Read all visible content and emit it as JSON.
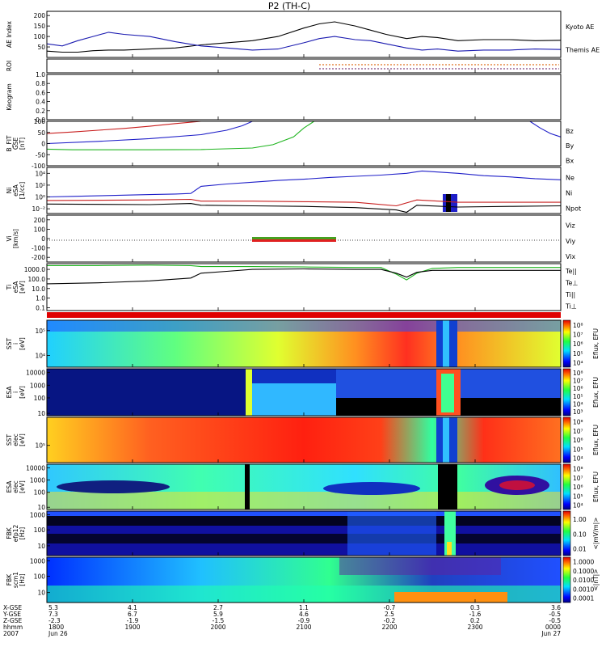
{
  "chart_data": {
    "type": "line",
    "title": "P2 (TH-C)",
    "panels": [
      {
        "id": "ae",
        "ylabel": [
          "AE Index"
        ],
        "yticks": [
          "50",
          "100",
          "150",
          "200"
        ],
        "legend": [
          {
            "name": "Kyoto AE",
            "color": "#1a1ab0"
          },
          {
            "name": "Themis AE",
            "color": "#000000"
          }
        ],
        "series": [
          {
            "name": "Themis AE",
            "color": "#000000",
            "x": [
              0,
              0.03,
              0.06,
              0.09,
              0.12,
              0.15,
              0.2,
              0.25,
              0.3,
              0.35,
              0.4,
              0.45,
              0.5,
              0.53,
              0.56,
              0.6,
              0.63,
              0.66,
              0.7,
              0.73,
              0.76,
              0.8,
              0.85,
              0.9,
              0.95,
              1.0
            ],
            "y": [
              30,
              25,
              25,
              32,
              35,
              35,
              40,
              45,
              60,
              70,
              80,
              100,
              140,
              160,
              170,
              150,
              130,
              110,
              90,
              100,
              95,
              80,
              85,
              85,
              80,
              82
            ]
          },
          {
            "name": "Kyoto AE",
            "color": "#1a1ab0",
            "x": [
              0,
              0.03,
              0.06,
              0.09,
              0.12,
              0.15,
              0.2,
              0.25,
              0.3,
              0.35,
              0.4,
              0.45,
              0.5,
              0.53,
              0.56,
              0.6,
              0.63,
              0.66,
              0.7,
              0.73,
              0.76,
              0.8,
              0.85,
              0.9,
              0.95,
              1.0
            ],
            "y": [
              65,
              55,
              80,
              100,
              120,
              110,
              100,
              75,
              55,
              45,
              35,
              40,
              70,
              90,
              100,
              85,
              80,
              65,
              45,
              35,
              40,
              30,
              35,
              35,
              40,
              38
            ]
          }
        ]
      },
      {
        "id": "roi",
        "ylabel": [
          "ROI"
        ],
        "yticks": []
      },
      {
        "id": "keogram",
        "ylabel": [
          "Keogram"
        ],
        "yticks": [
          "0.0",
          "0.2",
          "0.4",
          "0.6",
          "0.8",
          "1.0"
        ]
      },
      {
        "id": "bfit",
        "ylabel": [
          "B_FIT",
          "GSE",
          "[nT]"
        ],
        "yticks": [
          "-100",
          "-50",
          "0",
          "50",
          "100"
        ],
        "legend": [
          {
            "name": "Bz",
            "color": "#c81e1e"
          },
          {
            "name": "By",
            "color": "#1eb41e"
          },
          {
            "name": "Bx",
            "color": "#1e1ec8"
          }
        ],
        "series": [
          {
            "name": "Bz",
            "color": "#c81e1e",
            "x": [
              0,
              0.05,
              0.1,
              0.15,
              0.2,
              0.25,
              0.3
            ],
            "y": [
              45,
              52,
              60,
              68,
              78,
              90,
              100
            ]
          },
          {
            "name": "By",
            "color": "#1eb41e",
            "x": [
              0,
              0.05,
              0.1,
              0.2,
              0.3,
              0.4,
              0.44,
              0.48,
              0.5,
              0.52
            ],
            "y": [
              -25,
              -28,
              -28,
              -28,
              -27,
              -20,
              -5,
              30,
              70,
              100
            ]
          },
          {
            "name": "Bx",
            "color": "#1e1ec8",
            "x": [
              0,
              0.1,
              0.2,
              0.3,
              0.35,
              0.38,
              0.4
            ],
            "y": [
              0,
              10,
              22,
              40,
              60,
              80,
              100
            ]
          },
          {
            "name": "Bx",
            "color": "#1e1ec8",
            "x": [
              0.94,
              0.96,
              0.98,
              1.0
            ],
            "y": [
              100,
              70,
              45,
              30
            ]
          }
        ]
      },
      {
        "id": "ni",
        "ylabel": [
          "Ni",
          "eSA",
          "[1/cc]"
        ],
        "yticks": [
          "10⁻²",
          "10⁰",
          "10²",
          "10⁴"
        ],
        "legend": [
          {
            "name": "Ne",
            "color": "#c81e1e"
          },
          {
            "name": "Ni",
            "color": "#000000"
          },
          {
            "name": "Npot",
            "color": "#1e1ec8"
          }
        ],
        "series": [
          {
            "name": "Npot",
            "color": "#1e1ec8",
            "x": [
              0,
              0.05,
              0.1,
              0.15,
              0.2,
              0.25,
              0.28,
              0.3,
              0.35,
              0.4,
              0.45,
              0.5,
              0.55,
              0.6,
              0.65,
              0.7,
              0.73,
              0.8,
              0.85,
              0.9,
              0.95,
              1.0
            ],
            "y": [
              0,
              0.1,
              0.2,
              0.3,
              0.4,
              0.5,
              0.6,
              1.8,
              2.2,
              2.5,
              2.8,
              3.0,
              3.3,
              3.5,
              3.7,
              4.0,
              4.4,
              4.0,
              3.6,
              3.4,
              3.1,
              2.9
            ]
          },
          {
            "name": "Ne",
            "color": "#c81e1e",
            "x": [
              0,
              0.2,
              0.28,
              0.3,
              0.4,
              0.5,
              0.6,
              0.68,
              0.72,
              0.8,
              0.9,
              1.0
            ],
            "y": [
              -0.6,
              -0.5,
              -0.4,
              -0.7,
              -0.7,
              -0.8,
              -0.9,
              -1.5,
              -0.5,
              -0.9,
              -0.9,
              -0.9
            ]
          },
          {
            "name": "Ni",
            "color": "#000000",
            "x": [
              0,
              0.2,
              0.28,
              0.3,
              0.4,
              0.5,
              0.6,
              0.68,
              0.7,
              0.72,
              0.8,
              0.9,
              1.0
            ],
            "y": [
              -1.2,
              -1.3,
              -1.1,
              -1.4,
              -1.5,
              -1.6,
              -1.8,
              -2.2,
              -2.6,
              -1.4,
              -1.7,
              -1.6,
              -1.5
            ]
          }
        ]
      },
      {
        "id": "vi",
        "ylabel": [
          "Vi",
          "[km/s]"
        ],
        "yticks": [
          "-200",
          "-100",
          "0",
          "100",
          "200"
        ],
        "legend": [
          {
            "name": "Viz",
            "color": "#c81e1e"
          },
          {
            "name": "Viy",
            "color": "#1eb41e"
          },
          {
            "name": "Vix",
            "color": "#1e1ec8"
          }
        ]
      },
      {
        "id": "ti",
        "ylabel": [
          "Ti",
          "eSA",
          "[eV]"
        ],
        "yticks": [
          "0.1",
          "1.0",
          "10.0",
          "100.0",
          "1000.0"
        ],
        "legend": [
          {
            "name": "Te||",
            "color": "#000000"
          },
          {
            "name": "Te⊥",
            "color": "#c81e1e"
          },
          {
            "name": "Ti||",
            "color": "#1eb41e"
          },
          {
            "name": "Ti⊥",
            "color": "#1e1ec8"
          }
        ],
        "series": [
          {
            "name": "Ti||",
            "color": "#1eb41e",
            "x": [
              0,
              0.1,
              0.2,
              0.28,
              0.3,
              0.35,
              0.4,
              0.5,
              0.6,
              0.65,
              0.68,
              0.7,
              0.72,
              0.75,
              0.8,
              0.9,
              1.0
            ],
            "y": [
              3.4,
              3.4,
              3.45,
              3.4,
              3.3,
              3.3,
              3.3,
              3.25,
              3.2,
              3.2,
              2.5,
              1.9,
              2.6,
              3.1,
              3.2,
              3.2,
              3.2
            ]
          },
          {
            "name": "Te||",
            "color": "#000000",
            "x": [
              0,
              0.1,
              0.2,
              0.28,
              0.3,
              0.35,
              0.4,
              0.5,
              0.6,
              0.65,
              0.68,
              0.7,
              0.72,
              0.75,
              0.8,
              0.9,
              1.0
            ],
            "y": [
              1.5,
              1.6,
              1.8,
              2.1,
              2.6,
              2.8,
              3.0,
              3.05,
              3.0,
              3.0,
              2.6,
              2.2,
              2.7,
              2.9,
              2.9,
              2.9,
              2.9
            ]
          }
        ]
      },
      {
        "id": "sst_i",
        "ylabel": [
          "SST",
          "i",
          "[eV]"
        ],
        "yticks": [
          "10⁴",
          "10⁵"
        ],
        "colorbar": {
          "label": "Eflux, EFU",
          "ticks": [
            "10⁸",
            "10⁷",
            "10⁶",
            "10⁵",
            "10⁴"
          ]
        }
      },
      {
        "id": "esa_i",
        "ylabel": [
          "ESA",
          "i",
          "[eV]"
        ],
        "yticks": [
          "10",
          "100",
          "1000",
          "10000"
        ],
        "colorbar": {
          "label": "Eflux, EFU",
          "ticks": [
            "10⁸",
            "10⁷",
            "10⁶",
            "10⁵",
            "10⁴",
            "10³"
          ]
        }
      },
      {
        "id": "sst_e",
        "ylabel": [
          "SST",
          "elec",
          "[eV]"
        ],
        "yticks": [
          "10⁵"
        ],
        "colorbar": {
          "label": "Eflux, EFU",
          "ticks": [
            "10⁸",
            "10⁷",
            "10⁶",
            "10⁵",
            "10⁴"
          ]
        }
      },
      {
        "id": "esa_e",
        "ylabel": [
          "ESA",
          "elec",
          "[eV]"
        ],
        "yticks": [
          "10",
          "100",
          "1000",
          "10000"
        ],
        "colorbar": {
          "label": "Eflux, EFU",
          "ticks": [
            "10⁸",
            "10⁷",
            "10⁶",
            "10⁵",
            "10⁴"
          ]
        }
      },
      {
        "id": "fbk_e",
        "ylabel": [
          "FBK",
          "efp12",
          "[Hz]"
        ],
        "yticks": [
          "10",
          "100",
          "1000"
        ],
        "colorbar": {
          "label": "<|mV/m|>",
          "ticks": [
            "1.00",
            "0.10",
            "0.01"
          ]
        }
      },
      {
        "id": "fbk_b",
        "ylabel": [
          "FBK",
          "scm1",
          "[Hz]"
        ],
        "yticks": [
          "10",
          "100",
          "1000"
        ],
        "colorbar": {
          "label": "<|nT|>",
          "ticks": [
            "1.0000",
            "0.1000",
            "0.0100",
            "0.0010",
            "0.0001"
          ]
        }
      }
    ],
    "xaxis": {
      "row_labels": [
        "X-GSE",
        "Y-GSE",
        "Z-GSE",
        "hhmm",
        "2007"
      ],
      "columns": [
        {
          "values": [
            "5.3",
            "7.3",
            "-2.3",
            "1800",
            "Jun 26"
          ]
        },
        {
          "values": [
            "4.1",
            "6.7",
            "-1.9",
            "1900",
            ""
          ]
        },
        {
          "values": [
            "2.7",
            "5.9",
            "-1.5",
            "2000",
            ""
          ]
        },
        {
          "values": [
            "1.1",
            "4.6",
            "-0.9",
            "2100",
            ""
          ]
        },
        {
          "values": [
            "-0.7",
            "2.5",
            "-0.2",
            "2200",
            ""
          ]
        },
        {
          "values": [
            "0.3",
            "-1.6",
            "0.2",
            "2300",
            ""
          ]
        },
        {
          "values": [
            "3.6",
            "-0.5",
            "-0.5",
            "0000",
            "Jun 27"
          ]
        }
      ]
    }
  }
}
